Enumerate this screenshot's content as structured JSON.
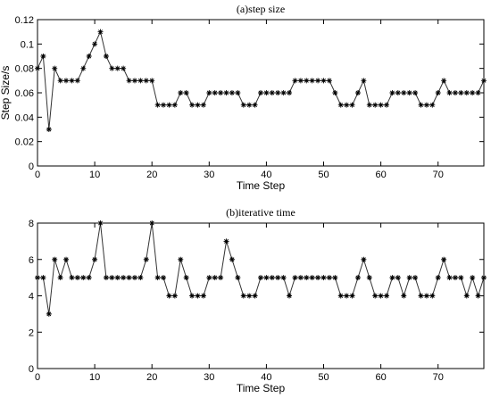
{
  "chart_data": [
    {
      "type": "line",
      "title": "(a)step size",
      "xlabel": "Time Step",
      "ylabel": "Step Size/s",
      "x": [
        0,
        1,
        2,
        3,
        4,
        5,
        6,
        7,
        8,
        9,
        10,
        11,
        12,
        13,
        14,
        15,
        16,
        17,
        18,
        19,
        20,
        21,
        22,
        23,
        24,
        25,
        26,
        27,
        28,
        29,
        30,
        31,
        32,
        33,
        34,
        35,
        36,
        37,
        38,
        39,
        40,
        41,
        42,
        43,
        44,
        45,
        46,
        47,
        48,
        49,
        50,
        51,
        52,
        53,
        54,
        55,
        56,
        57,
        58,
        59,
        60,
        61,
        62,
        63,
        64,
        65,
        66,
        67,
        68,
        69,
        70,
        71,
        72,
        73,
        74,
        75,
        76,
        77,
        78
      ],
      "series": [
        {
          "color": "#333333",
          "values": [
            0.08,
            0.09,
            0.03,
            0.08,
            0.07,
            0.07,
            0.07,
            0.07,
            0.08,
            0.09,
            0.1,
            0.11,
            0.09,
            0.08,
            0.08,
            0.08,
            0.07,
            0.07,
            0.07,
            0.07,
            0.07,
            0.05,
            0.05,
            0.05,
            0.05,
            0.06,
            0.06,
            0.05,
            0.05,
            0.05,
            0.06,
            0.06,
            0.06,
            0.06,
            0.06,
            0.06,
            0.05,
            0.05,
            0.05,
            0.06,
            0.06,
            0.06,
            0.06,
            0.06,
            0.06,
            0.07,
            0.07,
            0.07,
            0.07,
            0.07,
            0.07,
            0.07,
            0.06,
            0.05,
            0.05,
            0.05,
            0.06,
            0.07,
            0.05,
            0.05,
            0.05,
            0.05,
            0.06,
            0.06,
            0.06,
            0.06,
            0.06,
            0.05,
            0.05,
            0.05,
            0.06,
            0.07,
            0.06,
            0.06,
            0.06,
            0.06,
            0.06,
            0.06,
            0.07
          ]
        }
      ],
      "xlim": [
        0,
        78
      ],
      "xticks": [
        0,
        10,
        20,
        30,
        40,
        50,
        60,
        70
      ],
      "ylim": [
        0,
        0.12
      ],
      "yticks": [
        0,
        0.02,
        0.04,
        0.06,
        0.08,
        0.1,
        0.12
      ]
    },
    {
      "type": "line",
      "title": "(b)iterative time",
      "xlabel": "Time Step",
      "x": [
        0,
        1,
        2,
        3,
        4,
        5,
        6,
        7,
        8,
        9,
        10,
        11,
        12,
        13,
        14,
        15,
        16,
        17,
        18,
        19,
        20,
        21,
        22,
        23,
        24,
        25,
        26,
        27,
        28,
        29,
        30,
        31,
        32,
        33,
        34,
        35,
        36,
        37,
        38,
        39,
        40,
        41,
        42,
        43,
        44,
        45,
        46,
        47,
        48,
        49,
        50,
        51,
        52,
        53,
        54,
        55,
        56,
        57,
        58,
        59,
        60,
        61,
        62,
        63,
        64,
        65,
        66,
        67,
        68,
        69,
        70,
        71,
        72,
        73,
        74,
        75,
        76,
        77,
        78
      ],
      "series": [
        {
          "color": "#333333",
          "values": [
            5,
            5,
            3,
            6,
            5,
            6,
            5,
            5,
            5,
            5,
            6,
            8,
            5,
            5,
            5,
            5,
            5,
            5,
            5,
            6,
            8,
            5,
            5,
            4,
            4,
            6,
            5,
            4,
            4,
            4,
            5,
            5,
            5,
            7,
            6,
            5,
            4,
            4,
            4,
            5,
            5,
            5,
            5,
            5,
            4,
            5,
            5,
            5,
            5,
            5,
            5,
            5,
            5,
            4,
            4,
            4,
            5,
            6,
            5,
            4,
            4,
            4,
            5,
            5,
            4,
            5,
            5,
            4,
            4,
            4,
            5,
            6,
            5,
            5,
            5,
            4,
            5,
            4,
            5
          ]
        }
      ],
      "xlim": [
        0,
        78
      ],
      "xticks": [
        0,
        10,
        20,
        30,
        40,
        50,
        60,
        70
      ],
      "ylim": [
        0,
        8
      ],
      "yticks": [
        0,
        2,
        4,
        6,
        8
      ]
    }
  ]
}
